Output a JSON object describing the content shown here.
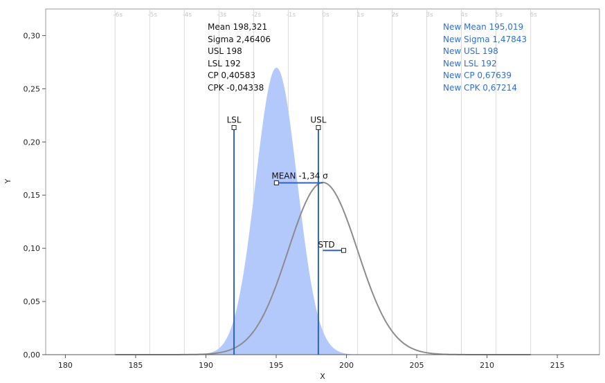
{
  "chart_data": {
    "type": "area",
    "xlabel": "X",
    "ylabel": "Y",
    "xlim": [
      178.6,
      218
    ],
    "ylim": [
      0,
      0.325
    ],
    "x_ticks": [
      180,
      185,
      190,
      195,
      200,
      205,
      210,
      215
    ],
    "x_tick_labels": [
      "180",
      "185",
      "190",
      "195",
      "200",
      "205",
      "210",
      "215"
    ],
    "y_ticks": [
      0,
      0.05,
      0.1,
      0.15,
      0.2,
      0.25,
      0.3
    ],
    "y_tick_labels": [
      "0,00",
      "0,05",
      "0,10",
      "0,15",
      "0,20",
      "0,25",
      "0,30"
    ],
    "sigma_gridlines": [
      {
        "label": "-6s",
        "x": 183.535
      },
      {
        "label": "-5s",
        "x": 186.0
      },
      {
        "label": "-4s",
        "x": 188.464
      },
      {
        "label": "-3s",
        "x": 190.929
      },
      {
        "label": "-2s",
        "x": 193.393
      },
      {
        "label": "-1s",
        "x": 195.857
      },
      {
        "label": "0s",
        "x": 198.321
      },
      {
        "label": "1s",
        "x": 200.785
      },
      {
        "label": "2s",
        "x": 203.249
      },
      {
        "label": "3s",
        "x": 205.713
      },
      {
        "label": "4s",
        "x": 208.177
      },
      {
        "label": "5s",
        "x": 210.641
      },
      {
        "label": "6s",
        "x": 213.105
      }
    ],
    "series": [
      {
        "kind": "filled-density",
        "mean": 195.019,
        "sigma": 1.47843,
        "color": "#b3c9fb"
      },
      {
        "kind": "density-curve",
        "mean": 198.321,
        "sigma": 2.46406,
        "color": "#8c8c8c"
      }
    ],
    "spec_lines": [
      {
        "label": "LSL",
        "x": 192,
        "y_top": 0.2135
      },
      {
        "label": "USL",
        "x": 198,
        "y_top": 0.2135
      }
    ],
    "mean_marker": {
      "label": "MEAN -1,34 σ",
      "x_from": 195.019,
      "x_to": 198.321,
      "y": 0.1615
    },
    "std_marker": {
      "label": "STD",
      "x_from": 198.321,
      "x_to": 199.8,
      "y": 0.098
    },
    "stats": [
      "Mean 198,321",
      "Sigma 2,46406",
      "USL 198",
      "LSL 192",
      "CP 0,40583",
      "CPK -0,04338"
    ],
    "new_stats": [
      "New Mean 195,019",
      "New Sigma 1,47843",
      "New USL 198",
      "New LSL 192",
      "New CP 0,67639",
      "New CPK 0,67214"
    ],
    "grid": true,
    "colors": {
      "fill": "#b3c9fb",
      "curve": "#8c8c8c",
      "spec_line": "#2f62b8",
      "new_stats_text": "#2f6fd0",
      "gridline": "#d8d8d8"
    }
  }
}
